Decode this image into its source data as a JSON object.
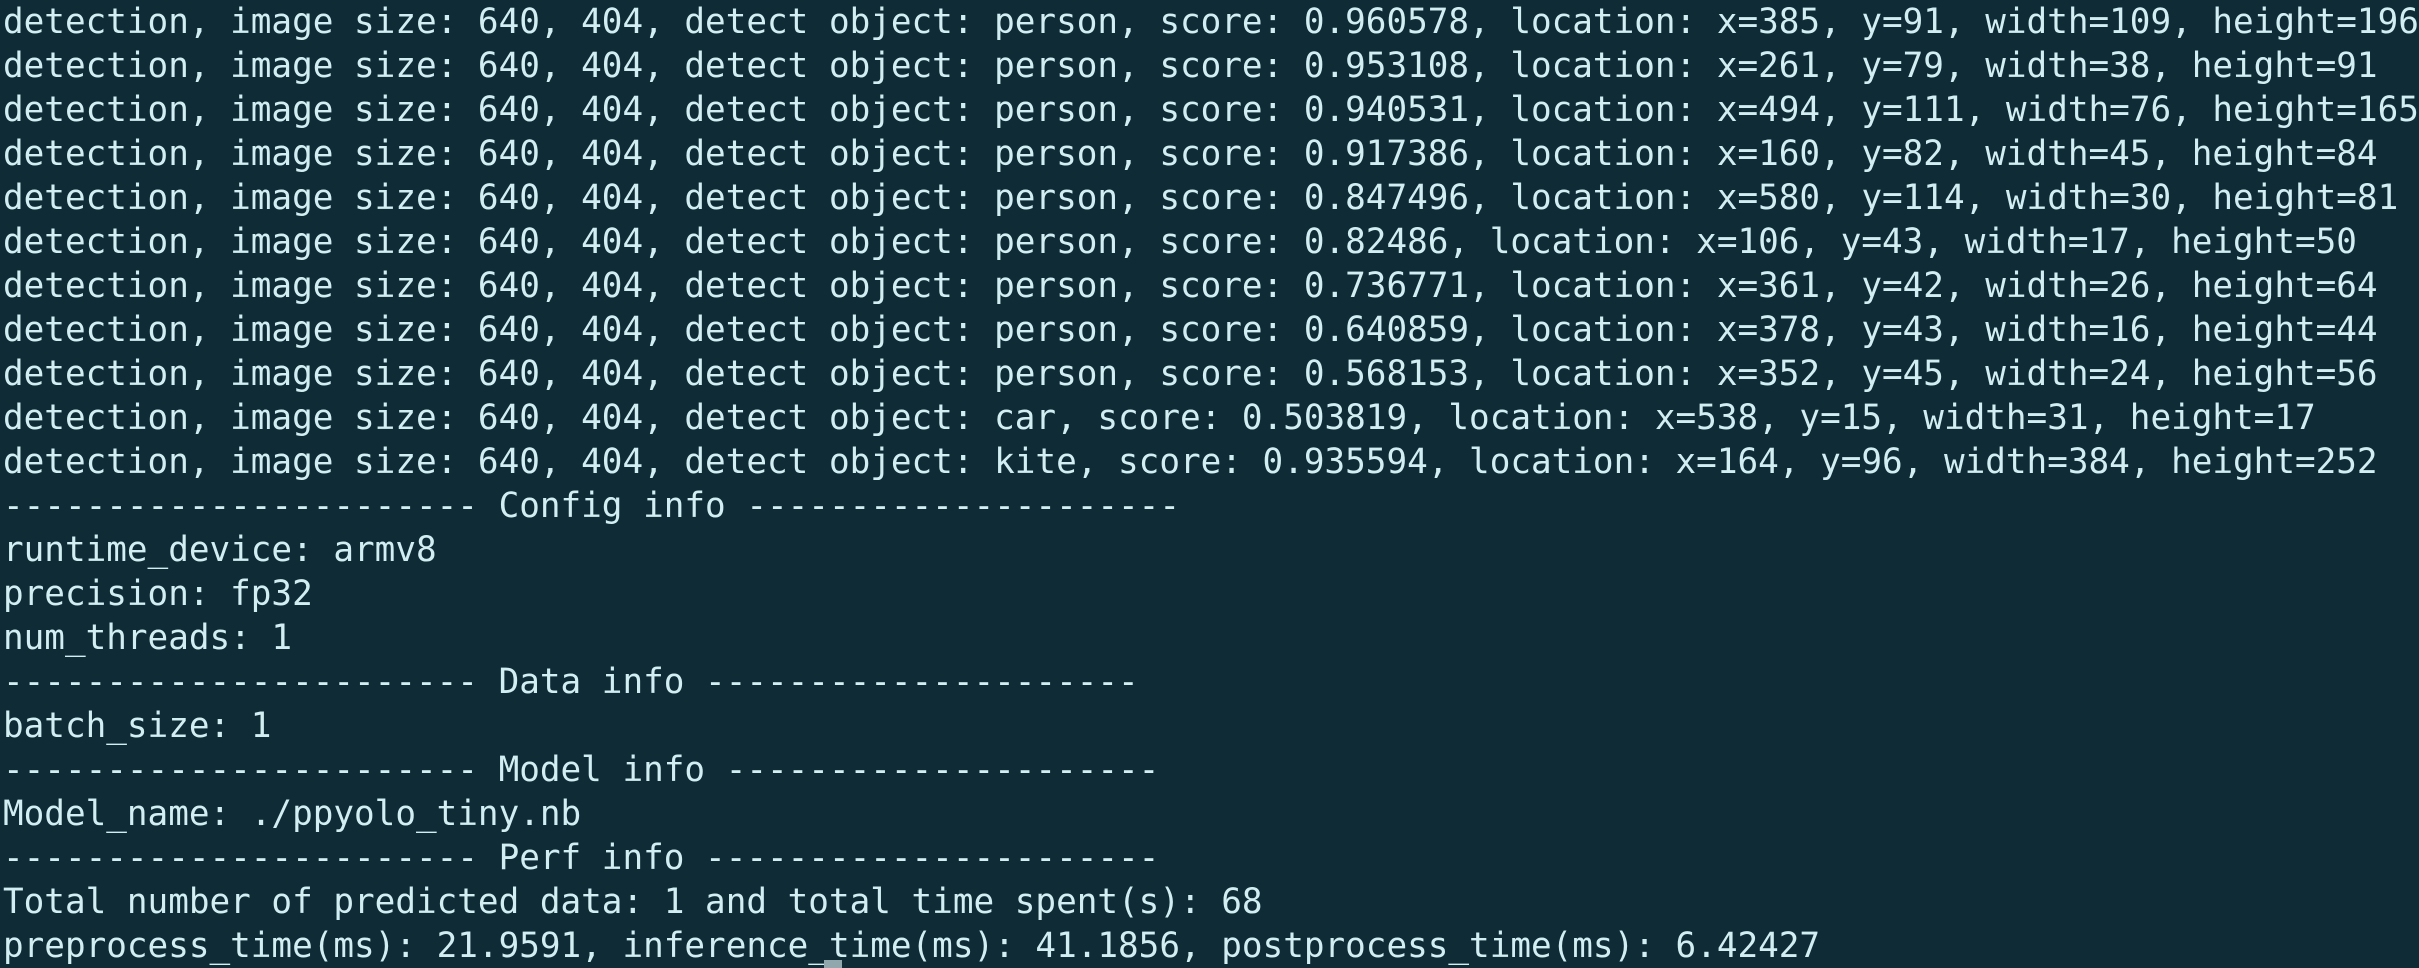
{
  "terminal": {
    "lines": [
      "detection, image size: 640, 404, detect object: person, score: 0.960578, location: x=385, y=91, width=109, height=196",
      "detection, image size: 640, 404, detect object: person, score: 0.953108, location: x=261, y=79, width=38, height=91",
      "detection, image size: 640, 404, detect object: person, score: 0.940531, location: x=494, y=111, width=76, height=165",
      "detection, image size: 640, 404, detect object: person, score: 0.917386, location: x=160, y=82, width=45, height=84",
      "detection, image size: 640, 404, detect object: person, score: 0.847496, location: x=580, y=114, width=30, height=81",
      "detection, image size: 640, 404, detect object: person, score: 0.82486, location: x=106, y=43, width=17, height=50",
      "detection, image size: 640, 404, detect object: person, score: 0.736771, location: x=361, y=42, width=26, height=64",
      "detection, image size: 640, 404, detect object: person, score: 0.640859, location: x=378, y=43, width=16, height=44",
      "detection, image size: 640, 404, detect object: person, score: 0.568153, location: x=352, y=45, width=24, height=56",
      "detection, image size: 640, 404, detect object: car, score: 0.503819, location: x=538, y=15, width=31, height=17",
      "detection, image size: 640, 404, detect object: kite, score: 0.935594, location: x=164, y=96, width=384, height=252",
      "----------------------- Config info ---------------------",
      "runtime_device: armv8",
      "precision: fp32",
      "num_threads: 1",
      "----------------------- Data info ---------------------",
      "batch_size: 1",
      "----------------------- Model info ---------------------",
      "Model_name: ./ppyolo_tiny.nb",
      "----------------------- Perf info ----------------------",
      "Total number of predicted data: 1 and total time spent(s): 68",
      "preprocess_time(ms): 21.9591, inference_time(ms): 41.1856, postprocess_time(ms): 6.42427"
    ]
  },
  "colors": {
    "background": "#0f2b36",
    "text": "#d2eef2"
  }
}
